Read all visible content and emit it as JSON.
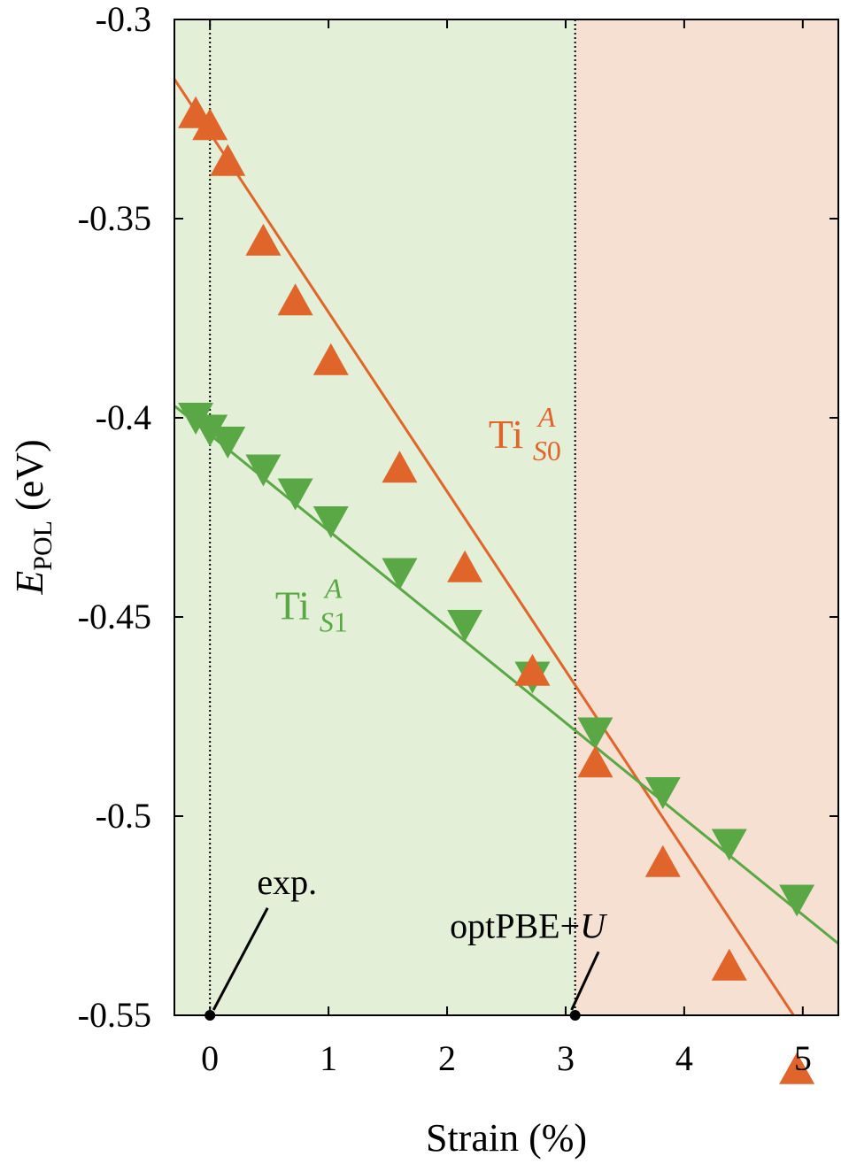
{
  "chart_data": {
    "type": "line",
    "xlabel": "Strain (%)",
    "ylabel": {
      "main": "E",
      "sub": "POL",
      "unit": " (eV)"
    },
    "xlim": [
      -0.3,
      5.3
    ],
    "ylim": [
      -0.55,
      -0.3
    ],
    "xticks": [
      {
        "value": 0,
        "label": "0"
      },
      {
        "value": 1,
        "label": "1"
      },
      {
        "value": 2,
        "label": "2"
      },
      {
        "value": 3,
        "label": "3"
      },
      {
        "value": 4,
        "label": "4"
      },
      {
        "value": 5,
        "label": "5"
      }
    ],
    "yticks": [
      {
        "value": -0.3,
        "label": "-0.3"
      },
      {
        "value": -0.35,
        "label": "-0.35"
      },
      {
        "value": -0.4,
        "label": "-0.4"
      },
      {
        "value": -0.45,
        "label": "-0.45"
      },
      {
        "value": -0.5,
        "label": "-0.5"
      },
      {
        "value": -0.55,
        "label": "-0.55"
      }
    ],
    "regions": [
      {
        "from": -0.3,
        "to": 3.08,
        "color": "#e4efd8"
      },
      {
        "from": 3.08,
        "to": 5.3,
        "color": "#f6e0d2"
      }
    ],
    "series": [
      {
        "name": "Ti_S0^A",
        "label": {
          "base": "Ti",
          "sub": "S0",
          "sup": "A",
          "x": 2.35,
          "y": -0.4075
        },
        "color": "#e0652b",
        "marker": "triangle-up",
        "fit_line": [
          [
            -0.3,
            -0.315
          ],
          [
            5.3,
            -0.567
          ]
        ],
        "x": [
          -0.12,
          0.0,
          0.15,
          0.45,
          0.72,
          1.02,
          1.6,
          2.15,
          2.72,
          3.25,
          3.82,
          4.38,
          4.95
        ],
        "y": [
          -0.3235,
          -0.3265,
          -0.3355,
          -0.3555,
          -0.3705,
          -0.3855,
          -0.4125,
          -0.4375,
          -0.4635,
          -0.4865,
          -0.5115,
          -0.5375,
          -0.5635
        ]
      },
      {
        "name": "Ti_S1^A",
        "label": {
          "base": "Ti",
          "sub": "S1",
          "sup": "A",
          "x": 0.55,
          "y": -0.4505
        },
        "color": "#5aa845",
        "marker": "triangle-down",
        "fit_line": [
          [
            -0.3,
            -0.397
          ],
          [
            5.3,
            -0.532
          ]
        ],
        "x": [
          -0.12,
          0.0,
          0.15,
          0.45,
          0.72,
          1.02,
          1.6,
          2.15,
          2.72,
          3.25,
          3.82,
          4.38,
          4.95
        ],
        "y": [
          -0.4,
          -0.403,
          -0.406,
          -0.413,
          -0.419,
          -0.426,
          -0.439,
          -0.452,
          -0.465,
          -0.479,
          -0.494,
          -0.507,
          -0.521
        ]
      }
    ],
    "reference_lines": [
      {
        "x": 0.0,
        "label": "exp.",
        "label_x": 0.65,
        "label_y": -0.5195
      },
      {
        "x": 3.08,
        "label_parts": [
          "optPBE+",
          "U"
        ],
        "label_x": 2.68,
        "label_y": -0.5305
      }
    ]
  }
}
